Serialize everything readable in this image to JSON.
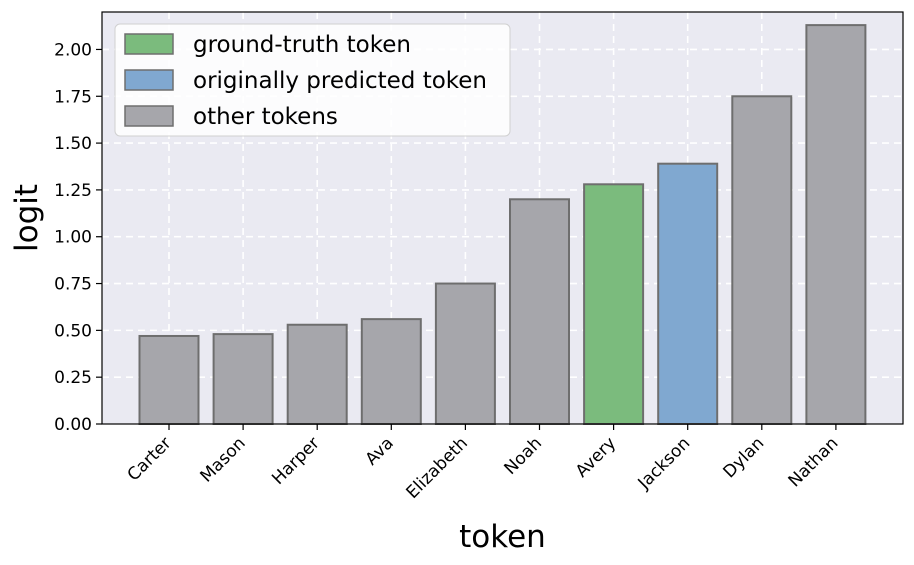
{
  "chart_data": {
    "type": "bar",
    "xlabel": "token",
    "ylabel": "logit",
    "ylim": [
      0,
      2.2
    ],
    "yticks": [
      "0.00",
      "0.25",
      "0.50",
      "0.75",
      "1.00",
      "1.25",
      "1.50",
      "1.75",
      "2.00"
    ],
    "categories": [
      "Carter",
      "Mason",
      "Harper",
      "Ava",
      "Elizabeth",
      "Noah",
      "Avery",
      "Jackson",
      "Dylan",
      "Nathan"
    ],
    "values": [
      0.47,
      0.48,
      0.53,
      0.56,
      0.75,
      1.2,
      1.28,
      1.39,
      1.75,
      2.13
    ],
    "bar_roles": [
      "other",
      "other",
      "other",
      "other",
      "other",
      "other",
      "ground",
      "predicted",
      "other",
      "other"
    ],
    "grid": true,
    "legend_position": "upper-left",
    "legend": [
      {
        "role": "ground",
        "label": "ground-truth token",
        "color": "#7bbb7d"
      },
      {
        "role": "predicted",
        "label": "originally predicted token",
        "color": "#80a8d0"
      },
      {
        "role": "other",
        "label": "other tokens",
        "color": "#a6a6ab"
      }
    ],
    "colors": {
      "background": "#eaeaf2",
      "grid": "#ffffff",
      "bar_edge": "#6e6e6e"
    }
  }
}
